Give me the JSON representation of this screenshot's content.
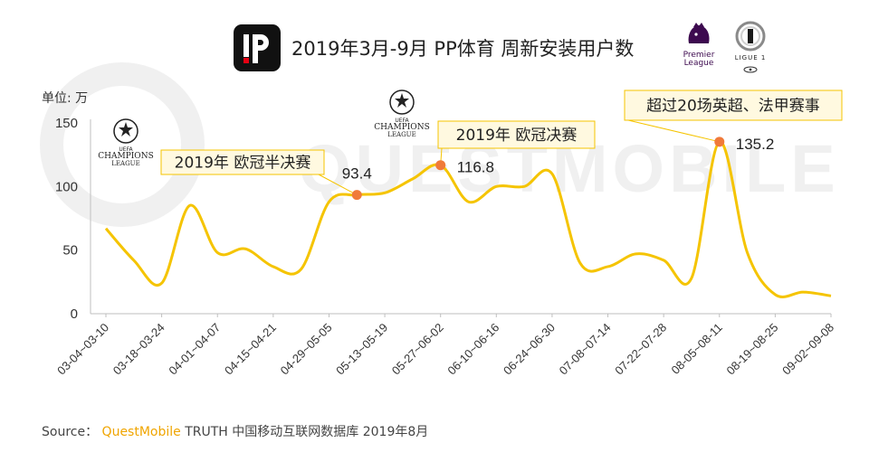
{
  "header": {
    "title": "2019年3月-9月 PP体育 周新安装用户数",
    "unit_label": "单位: 万",
    "logo_icon": "pp-sports-logo-icon"
  },
  "logos": {
    "ucl_text_1": "UEFA",
    "ucl_text_2": "CHAMPIONS",
    "ucl_text_3": "LEAGUE",
    "premier_text_1": "Premier",
    "premier_text_2": "League",
    "ligue_text": "LIGUE 1"
  },
  "source": {
    "prefix": "Source：",
    "brand": "QuestMobile",
    "rest": "TRUTH 中国移动互联网数据库 2019年8月"
  },
  "watermark": "QUESTMOBILE",
  "chart_data": {
    "type": "line",
    "ylabel": "单位: 万",
    "ylim": [
      0,
      150
    ],
    "yticks": [
      0,
      50,
      100,
      150
    ],
    "grid": false,
    "line_color": "#f5c400",
    "marker_color": "#f07a3a",
    "x_tick_labels": [
      "03-04~03-10",
      "03-18~03-24",
      "04-01~04-07",
      "04-15~04-21",
      "04-29~05-05",
      "05-13~05-19",
      "05-27~06-02",
      "06-10~06-16",
      "06-24~06-30",
      "07-08~07-14",
      "07-22~07-28",
      "08-05~08-11",
      "08-19~08-25",
      "09-02~09-08"
    ],
    "series": [
      {
        "values": [
          67,
          42,
          24,
          85,
          48,
          51,
          37,
          35,
          88,
          93.4,
          95,
          106,
          116.8,
          88,
          100,
          100,
          110,
          40,
          37,
          47,
          42,
          28,
          135.2,
          48,
          15,
          17,
          14
        ]
      }
    ],
    "highlights": [
      {
        "index": 9,
        "value": "93.4",
        "note": "2019年 欧冠半决赛"
      },
      {
        "index": 12,
        "value": "116.8",
        "note": "2019年 欧冠决赛"
      },
      {
        "index": 22,
        "value": "135.2",
        "note": "超过20场英超、法甲赛事"
      }
    ]
  }
}
